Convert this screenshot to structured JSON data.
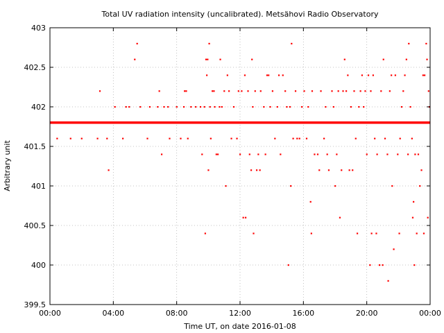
{
  "chart_data": {
    "type": "scatter",
    "title": "Total UV radiation intensity (uncalibrated). Metsähovi Radio Observatory",
    "xlabel": "Time UT, on date 2016-01-08",
    "ylabel": "Arbitrary unit",
    "xlim": [
      0,
      24
    ],
    "ylim": [
      399.5,
      403
    ],
    "x_ticks": [
      {
        "value": 0,
        "label": "00:00"
      },
      {
        "value": 4,
        "label": "04:00"
      },
      {
        "value": 8,
        "label": "08:00"
      },
      {
        "value": 12,
        "label": "12:00"
      },
      {
        "value": 16,
        "label": "16:00"
      },
      {
        "value": 20,
        "label": "20:00"
      },
      {
        "value": 24,
        "label": "00:00"
      }
    ],
    "y_ticks": [
      {
        "value": 399.5,
        "label": "399.5"
      },
      {
        "value": 400,
        "label": "400"
      },
      {
        "value": 400.5,
        "label": "400.5"
      },
      {
        "value": 401,
        "label": "401"
      },
      {
        "value": 401.5,
        "label": "401.5"
      },
      {
        "value": 402,
        "label": "402"
      },
      {
        "value": 402.5,
        "label": "402.5"
      },
      {
        "value": 403,
        "label": "403"
      }
    ],
    "grid": true,
    "series": [
      {
        "color": "#ff0000",
        "baseline_value": 401.8,
        "baseline_range": [
          0,
          24
        ],
        "points": [
          [
            0.45,
            401.6
          ],
          [
            1.3,
            401.6
          ],
          [
            2.0,
            401.6
          ],
          [
            3.0,
            401.6
          ],
          [
            3.15,
            402.2
          ],
          [
            3.6,
            401.6
          ],
          [
            3.7,
            401.2
          ],
          [
            4.1,
            402.0
          ],
          [
            4.6,
            401.6
          ],
          [
            4.8,
            402.0
          ],
          [
            5.0,
            402.0
          ],
          [
            5.35,
            402.6
          ],
          [
            5.5,
            402.8
          ],
          [
            5.7,
            402.0
          ],
          [
            6.15,
            401.6
          ],
          [
            6.3,
            402.0
          ],
          [
            6.8,
            402.0
          ],
          [
            6.9,
            402.2
          ],
          [
            7.05,
            401.4
          ],
          [
            7.2,
            402.0
          ],
          [
            7.45,
            402.0
          ],
          [
            7.55,
            401.6
          ],
          [
            8.0,
            402.0
          ],
          [
            8.25,
            401.6
          ],
          [
            8.45,
            402.0
          ],
          [
            8.5,
            402.2
          ],
          [
            8.6,
            402.2
          ],
          [
            8.7,
            401.6
          ],
          [
            8.9,
            402.0
          ],
          [
            9.2,
            402.0
          ],
          [
            9.5,
            402.0
          ],
          [
            9.6,
            401.4
          ],
          [
            9.75,
            402.0
          ],
          [
            9.8,
            400.4
          ],
          [
            9.85,
            402.6
          ],
          [
            9.9,
            402.4
          ],
          [
            9.95,
            402.6
          ],
          [
            10.0,
            401.2
          ],
          [
            10.05,
            402.8
          ],
          [
            10.1,
            402.0
          ],
          [
            10.15,
            401.6
          ],
          [
            10.25,
            402.2
          ],
          [
            10.35,
            402.2
          ],
          [
            10.4,
            402.0
          ],
          [
            10.5,
            401.4
          ],
          [
            10.6,
            401.4
          ],
          [
            10.7,
            402.0
          ],
          [
            10.75,
            402.6
          ],
          [
            10.85,
            402.0
          ],
          [
            11.0,
            402.2
          ],
          [
            11.1,
            401.0
          ],
          [
            11.2,
            402.4
          ],
          [
            11.3,
            402.2
          ],
          [
            11.45,
            401.6
          ],
          [
            11.6,
            402.0
          ],
          [
            11.8,
            401.6
          ],
          [
            11.9,
            402.2
          ],
          [
            12.0,
            401.4
          ],
          [
            12.1,
            402.2
          ],
          [
            12.2,
            400.6
          ],
          [
            12.3,
            402.4
          ],
          [
            12.35,
            400.6
          ],
          [
            12.5,
            402.2
          ],
          [
            12.6,
            401.4
          ],
          [
            12.7,
            401.2
          ],
          [
            12.75,
            402.6
          ],
          [
            12.8,
            402.0
          ],
          [
            12.85,
            400.4
          ],
          [
            12.95,
            402.2
          ],
          [
            13.05,
            401.2
          ],
          [
            13.15,
            401.4
          ],
          [
            13.25,
            401.2
          ],
          [
            13.3,
            402.2
          ],
          [
            13.5,
            402.0
          ],
          [
            13.6,
            401.4
          ],
          [
            13.7,
            402.4
          ],
          [
            13.8,
            402.4
          ],
          [
            13.9,
            402.0
          ],
          [
            14.05,
            402.2
          ],
          [
            14.2,
            401.6
          ],
          [
            14.35,
            402.0
          ],
          [
            14.45,
            402.4
          ],
          [
            14.55,
            401.4
          ],
          [
            14.7,
            402.4
          ],
          [
            14.85,
            402.2
          ],
          [
            14.95,
            402.0
          ],
          [
            15.05,
            400.0
          ],
          [
            15.15,
            402.0
          ],
          [
            15.2,
            401.0
          ],
          [
            15.25,
            402.8
          ],
          [
            15.35,
            401.6
          ],
          [
            15.5,
            402.2
          ],
          [
            15.6,
            401.6
          ],
          [
            15.75,
            401.6
          ],
          [
            15.9,
            402.0
          ],
          [
            16.05,
            402.2
          ],
          [
            16.2,
            401.6
          ],
          [
            16.3,
            402.0
          ],
          [
            16.45,
            400.8
          ],
          [
            16.5,
            400.4
          ],
          [
            16.55,
            402.2
          ],
          [
            16.7,
            401.4
          ],
          [
            16.9,
            401.4
          ],
          [
            17.0,
            401.2
          ],
          [
            17.1,
            402.2
          ],
          [
            17.3,
            401.6
          ],
          [
            17.4,
            402.0
          ],
          [
            17.5,
            401.4
          ],
          [
            17.6,
            401.2
          ],
          [
            17.8,
            402.2
          ],
          [
            17.9,
            402.0
          ],
          [
            18.0,
            401.0
          ],
          [
            18.1,
            401.4
          ],
          [
            18.2,
            402.2
          ],
          [
            18.3,
            400.6
          ],
          [
            18.4,
            401.2
          ],
          [
            18.5,
            402.2
          ],
          [
            18.6,
            402.6
          ],
          [
            18.7,
            402.2
          ],
          [
            18.8,
            402.4
          ],
          [
            18.9,
            401.2
          ],
          [
            19.0,
            402.0
          ],
          [
            19.1,
            401.2
          ],
          [
            19.2,
            402.2
          ],
          [
            19.3,
            401.6
          ],
          [
            19.4,
            400.4
          ],
          [
            19.5,
            402.0
          ],
          [
            19.6,
            402.2
          ],
          [
            19.7,
            402.4
          ],
          [
            19.8,
            402.0
          ],
          [
            19.9,
            402.2
          ],
          [
            20.0,
            401.4
          ],
          [
            20.1,
            402.4
          ],
          [
            20.2,
            400.0
          ],
          [
            20.25,
            402.2
          ],
          [
            20.3,
            400.4
          ],
          [
            20.4,
            402.4
          ],
          [
            20.5,
            401.6
          ],
          [
            20.6,
            400.4
          ],
          [
            20.65,
            401.4
          ],
          [
            20.8,
            400.0
          ],
          [
            20.9,
            402.2
          ],
          [
            21.0,
            400.0
          ],
          [
            21.05,
            402.6
          ],
          [
            21.15,
            401.6
          ],
          [
            21.3,
            401.4
          ],
          [
            21.35,
            399.8
          ],
          [
            21.45,
            402.2
          ],
          [
            21.55,
            402.4
          ],
          [
            21.6,
            401.0
          ],
          [
            21.7,
            400.2
          ],
          [
            21.8,
            402.4
          ],
          [
            21.95,
            401.4
          ],
          [
            22.05,
            400.4
          ],
          [
            22.1,
            401.6
          ],
          [
            22.2,
            402.0
          ],
          [
            22.3,
            402.2
          ],
          [
            22.4,
            402.4
          ],
          [
            22.5,
            402.6
          ],
          [
            22.6,
            401.4
          ],
          [
            22.65,
            402.8
          ],
          [
            22.75,
            402.0
          ],
          [
            22.85,
            401.6
          ],
          [
            22.9,
            400.6
          ],
          [
            22.95,
            400.8
          ],
          [
            23.0,
            400.0
          ],
          [
            23.05,
            401.4
          ],
          [
            23.15,
            400.4
          ],
          [
            23.25,
            401.4
          ],
          [
            23.35,
            401.0
          ],
          [
            23.45,
            401.2
          ],
          [
            23.55,
            402.4
          ],
          [
            23.6,
            400.4
          ],
          [
            23.65,
            402.4
          ],
          [
            23.75,
            402.8
          ],
          [
            23.8,
            402.6
          ],
          [
            23.85,
            400.6
          ],
          [
            23.9,
            402.2
          ],
          [
            23.95,
            402.0
          ]
        ]
      }
    ]
  }
}
